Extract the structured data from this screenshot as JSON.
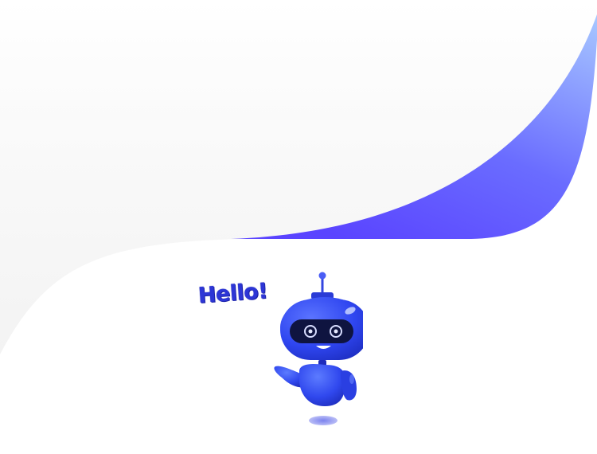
{
  "greeting": {
    "text": "Hello!"
  },
  "colors": {
    "accent_dark": "#5b4cff",
    "accent_light": "#8fb0ff",
    "background_grey": "#f6f6f6",
    "robot_blue": "#2f46f0",
    "greeting": "#2d36d6"
  },
  "illustration": {
    "subject": "robot-mascot-waving"
  }
}
